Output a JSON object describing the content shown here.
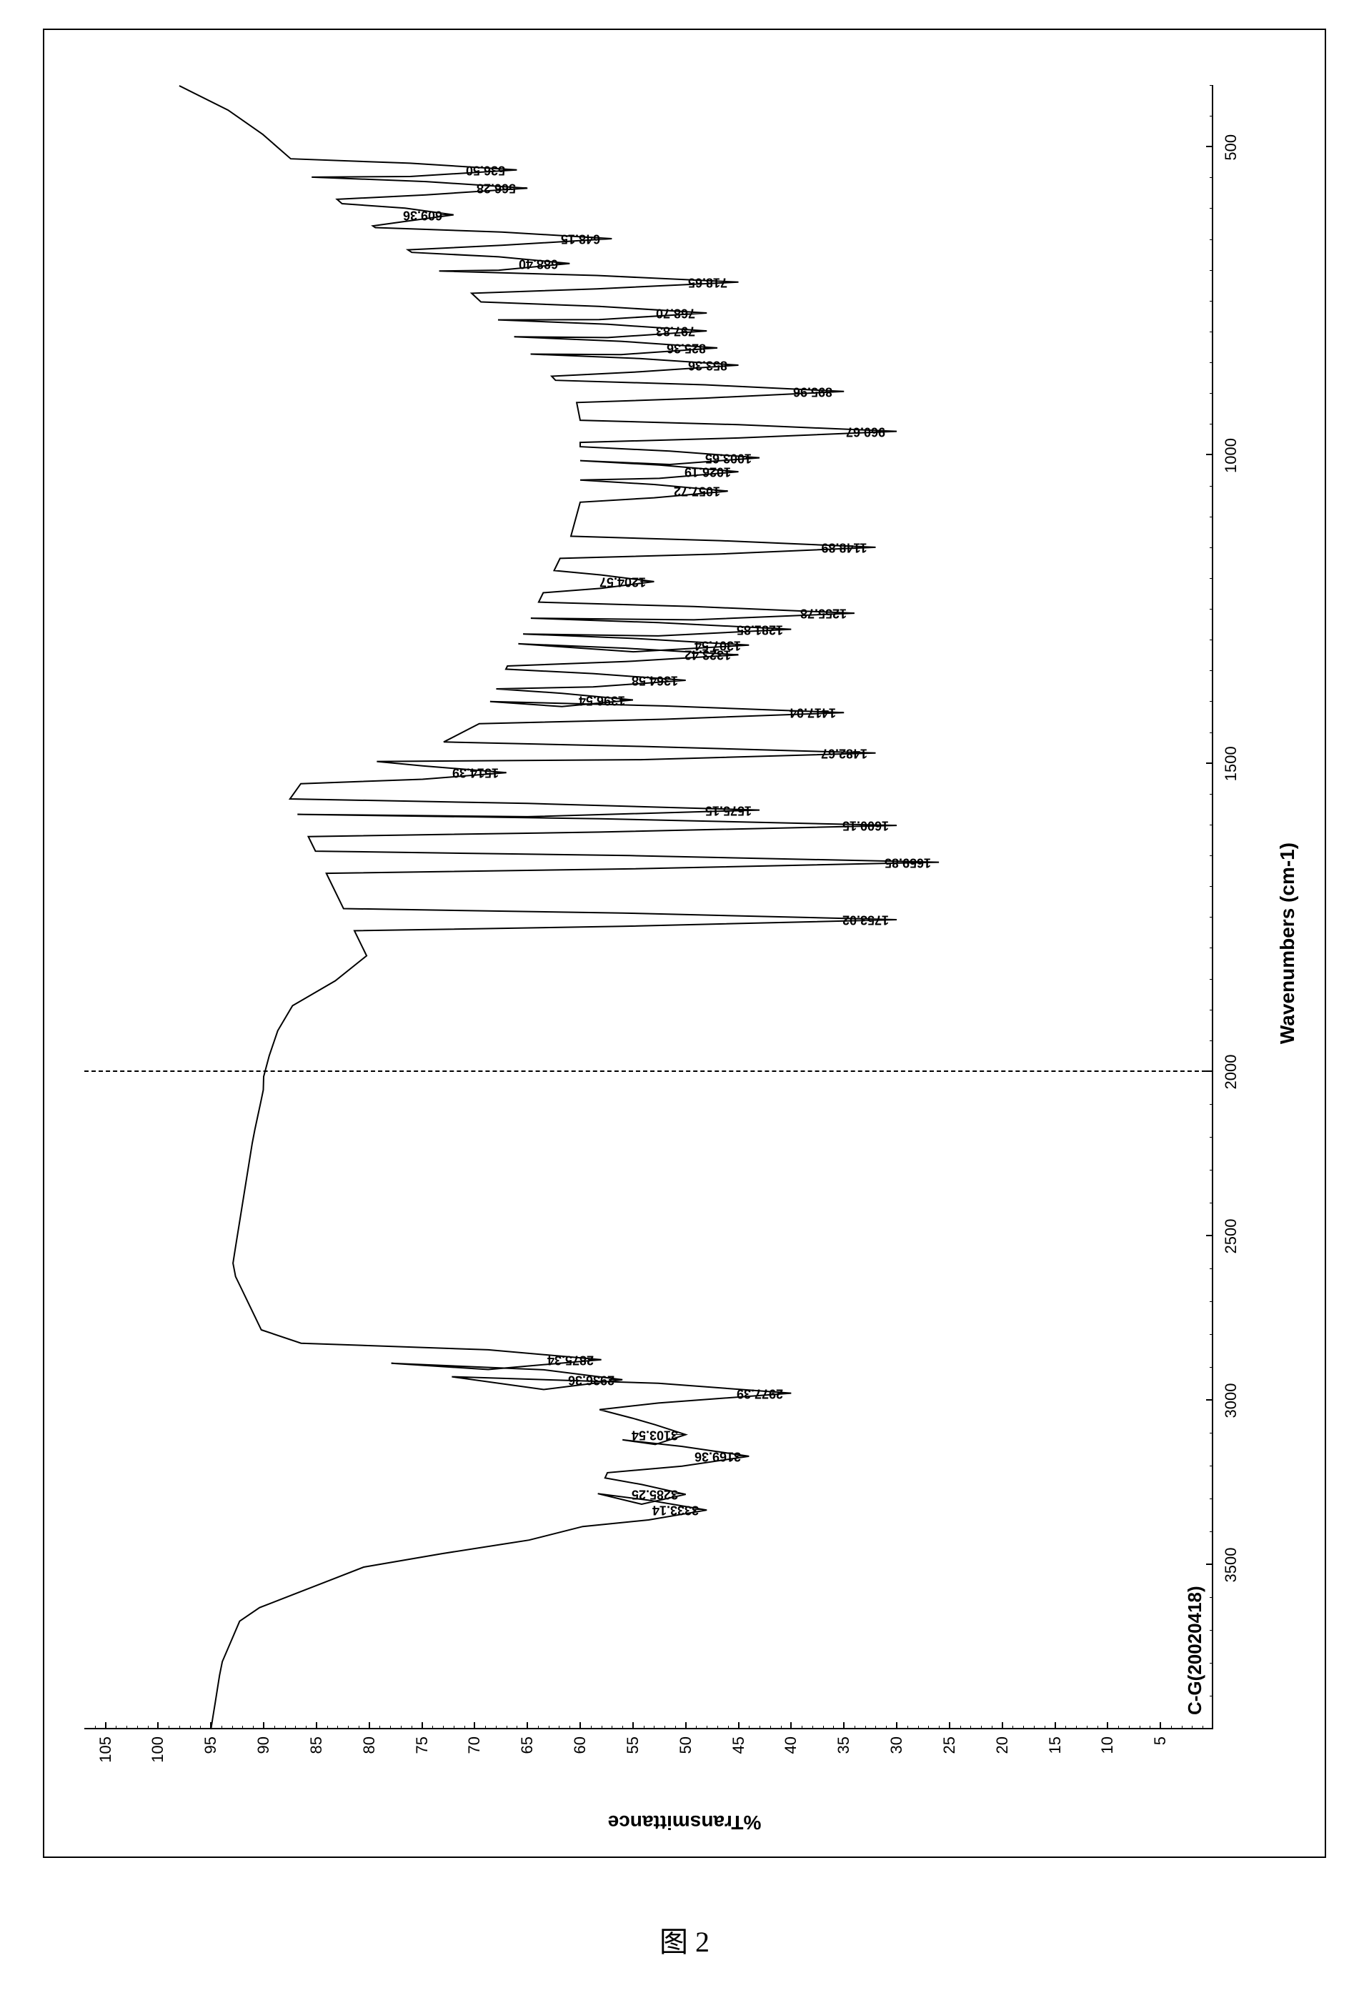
{
  "caption": "图 2",
  "chart": {
    "type": "line-spectrum",
    "sample_label": "C-G(20020418)",
    "x_axis": {
      "title": "Wavenumbers (cm-1)",
      "scale": "linear-split",
      "left_segment": {
        "min": 4000,
        "max": 2000,
        "fraction": 0.4
      },
      "right_segment": {
        "min": 2000,
        "max": 400,
        "fraction": 0.6
      },
      "major_ticks": [
        3500,
        3000,
        2500,
        2000,
        1500,
        1000,
        500
      ],
      "minor_step_left": 100,
      "minor_step_right": 50,
      "break_at": 2000
    },
    "y_axis": {
      "title": "%Transmittance",
      "min": 0,
      "max": 107,
      "major_ticks": [
        5,
        10,
        15,
        20,
        25,
        30,
        35,
        40,
        45,
        50,
        55,
        60,
        65,
        70,
        75,
        80,
        85,
        90,
        95,
        100,
        105
      ],
      "minor_step": 1
    },
    "colors": {
      "line": "#000000",
      "axis": "#000000",
      "background": "#ffffff",
      "break_line": "#000000"
    },
    "line_width": 2,
    "peaks": [
      {
        "wn": 3333.14,
        "t": 48
      },
      {
        "wn": 3285.25,
        "t": 50
      },
      {
        "wn": 3169.36,
        "t": 44
      },
      {
        "wn": 3103.54,
        "t": 50
      },
      {
        "wn": 2977.39,
        "t": 40
      },
      {
        "wn": 2936.36,
        "t": 56
      },
      {
        "wn": 2875.34,
        "t": 58
      },
      {
        "wn": 1753.02,
        "t": 30
      },
      {
        "wn": 1659.85,
        "t": 26
      },
      {
        "wn": 1600.15,
        "t": 30
      },
      {
        "wn": 1575.15,
        "t": 43
      },
      {
        "wn": 1514.39,
        "t": 67
      },
      {
        "wn": 1482.67,
        "t": 32
      },
      {
        "wn": 1417.04,
        "t": 35
      },
      {
        "wn": 1396.54,
        "t": 55
      },
      {
        "wn": 1364.58,
        "t": 50
      },
      {
        "wn": 1323.42,
        "t": 45
      },
      {
        "wn": 1307.54,
        "t": 44
      },
      {
        "wn": 1281.85,
        "t": 40
      },
      {
        "wn": 1255.78,
        "t": 34
      },
      {
        "wn": 1204.57,
        "t": 53
      },
      {
        "wn": 1148.89,
        "t": 32
      },
      {
        "wn": 1057.72,
        "t": 46
      },
      {
        "wn": 1026.19,
        "t": 45
      },
      {
        "wn": 1003.65,
        "t": 43
      },
      {
        "wn": 960.67,
        "t": 30
      },
      {
        "wn": 895.96,
        "t": 35
      },
      {
        "wn": 853.36,
        "t": 45
      },
      {
        "wn": 825.36,
        "t": 47
      },
      {
        "wn": 797.83,
        "t": 48
      },
      {
        "wn": 768.7,
        "t": 48
      },
      {
        "wn": 718.65,
        "t": 45
      },
      {
        "wn": 688.4,
        "t": 61
      },
      {
        "wn": 648.15,
        "t": 57
      },
      {
        "wn": 609.36,
        "t": 72
      },
      {
        "wn": 566.28,
        "t": 65
      },
      {
        "wn": 536.5,
        "t": 66
      }
    ],
    "baseline_points": [
      {
        "wn": 4000,
        "t": 95
      },
      {
        "wn": 3800,
        "t": 94
      },
      {
        "wn": 3650,
        "t": 92
      },
      {
        "wn": 3500,
        "t": 80
      },
      {
        "wn": 3400,
        "t": 60
      },
      {
        "wn": 3050,
        "t": 55
      },
      {
        "wn": 2800,
        "t": 90
      },
      {
        "wn": 2600,
        "t": 93
      },
      {
        "wn": 2400,
        "t": 92
      },
      {
        "wn": 2200,
        "t": 91
      },
      {
        "wn": 2050,
        "t": 90
      },
      {
        "wn": 2000,
        "t": 90
      },
      {
        "wn": 1900,
        "t": 88
      },
      {
        "wn": 1820,
        "t": 80
      },
      {
        "wn": 1540,
        "t": 88
      },
      {
        "wn": 1450,
        "t": 70
      },
      {
        "wn": 1100,
        "t": 60
      },
      {
        "wn": 920,
        "t": 60
      },
      {
        "wn": 740,
        "t": 70
      },
      {
        "wn": 600,
        "t": 82
      },
      {
        "wn": 480,
        "t": 90
      },
      {
        "wn": 420,
        "t": 95
      },
      {
        "wn": 400,
        "t": 98
      }
    ]
  }
}
